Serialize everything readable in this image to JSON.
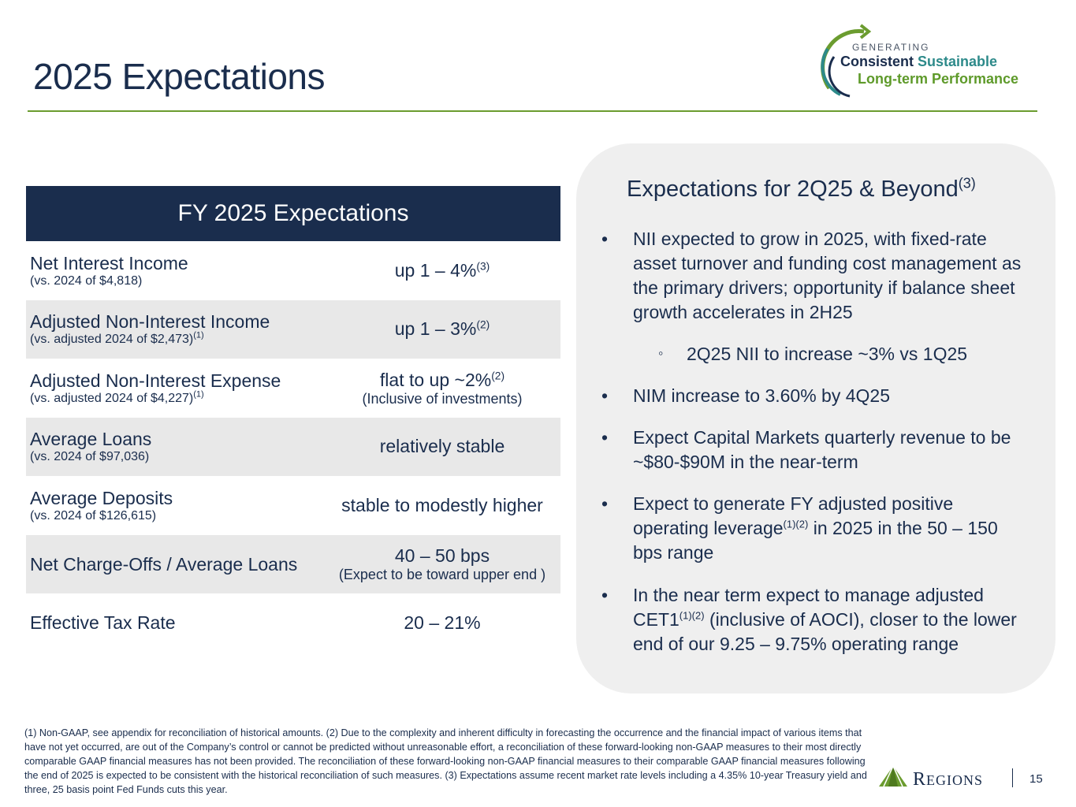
{
  "header": {
    "title": "2025 Expectations",
    "logo": {
      "generating": "GENERATING",
      "consistent": "Consistent",
      "sustainable": "Sustainable",
      "long_term": "Long-term Performance"
    }
  },
  "table": {
    "header": "FY 2025 Expectations",
    "rows": [
      {
        "label": "Net Interest Income",
        "sub": "(vs. 2024 of $4,818)",
        "sub_sup": "",
        "value": "up 1 – 4%",
        "value_sup": "(3)",
        "value_sub": ""
      },
      {
        "label": "Adjusted Non-Interest Income",
        "sub": "(vs. adjusted 2024 of $2,473)",
        "sub_sup": "(1)",
        "value": "up 1 – 3%",
        "value_sup": "(2)",
        "value_sub": ""
      },
      {
        "label": "Adjusted Non-Interest Expense",
        "sub": "(vs. adjusted 2024 of $4,227)",
        "sub_sup": "(1)",
        "value": "flat to up ~2%",
        "value_sup": "(2)",
        "value_sub": "(Inclusive of investments)"
      },
      {
        "label": "Average Loans",
        "sub": "(vs. 2024 of $97,036)",
        "sub_sup": "",
        "value": "relatively stable",
        "value_sup": "",
        "value_sub": ""
      },
      {
        "label": "Average Deposits",
        "sub": "(vs. 2024 of $126,615)",
        "sub_sup": "",
        "value": "stable to modestly higher",
        "value_sup": "",
        "value_sub": ""
      },
      {
        "label": "Net Charge-Offs / Average Loans",
        "sub": "",
        "sub_sup": "",
        "value": "40 – 50 bps",
        "value_sup": "",
        "value_sub": "(Expect to be toward upper end )"
      },
      {
        "label": "Effective Tax Rate",
        "sub": "",
        "sub_sup": "",
        "value": "20 – 21%",
        "value_sup": "",
        "value_sub": ""
      }
    ]
  },
  "panel": {
    "heading": "Expectations for 2Q25 & Beyond",
    "heading_sup": "(3)",
    "bullet_char": "•",
    "sub_bullet_char": "◦",
    "bullets": [
      {
        "text": "NII expected to grow in 2025, with fixed-rate asset turnover and funding cost management as the primary drivers; opportunity if balance sheet growth accelerates in 2H25"
      },
      {
        "text": "NIM increase to 3.60% by 4Q25"
      },
      {
        "text": "Expect Capital Markets quarterly revenue to be ~$80-$90M in the near-term"
      },
      {
        "text_a": "Expect to generate FY adjusted positive operating leverage",
        "sup": "(1)(2)",
        "text_b": " in 2025 in the 50 – 150 bps range"
      },
      {
        "text_a": "In the near term expect to manage adjusted CET1",
        "sup": "(1)(2)",
        "text_b": " (inclusive of AOCI), closer to the lower end of our 9.25 – 9.75% operating range"
      }
    ],
    "sub_bullet": "2Q25 NII to increase ~3% vs 1Q25"
  },
  "footer": {
    "footnote": "(1) Non-GAAP, see appendix for reconciliation of historical amounts. (2) Due to the complexity and inherent difficulty in forecasting the occurrence and the financial impact of various items that have not yet occurred, are out of the Company’s control or cannot be predicted without unreasonable effort, a reconciliation of these forward-looking non-GAAP measures to their most directly comparable GAAP financial measures has not been provided. The reconciliation of these forward-looking non-GAAP financial measures to their comparable GAAP financial measures following the end of 2025 is expected to be consistent with the historical reconciliation of such measures. (3) Expectations assume recent market rate levels including a 4.35% 10-year Treasury yield and three, 25 basis point Fed Funds cuts this year.",
    "brand_first": "R",
    "brand_rest": "EGIONS",
    "page_number": "15"
  },
  "colors": {
    "navy": "#1a2d4d",
    "green": "#6b9c2f",
    "teal": "#2d8a8a",
    "shade": "#e8e8e8",
    "panel": "#efefef"
  }
}
